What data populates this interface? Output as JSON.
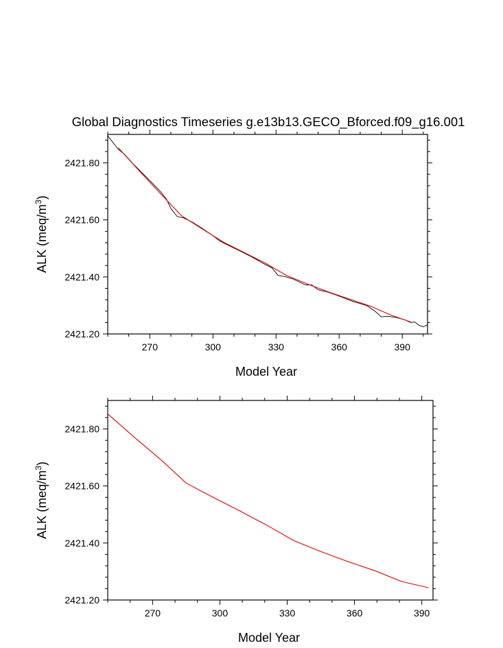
{
  "figure": {
    "title": "Global Diagnostics Timeseries g.e13b13.GECO_Bforced.f09_g16.001"
  },
  "chart_data": [
    {
      "type": "line",
      "xlabel": "Model Year",
      "ylabel_main": "ALK (meq/m",
      "ylabel_sup": "3",
      "ylabel_tail": ")",
      "xlim": [
        250,
        402
      ],
      "ylim": [
        2421.2,
        2421.9
      ],
      "xticks": [
        270,
        300,
        330,
        360,
        390
      ],
      "yticks": [
        2421.2,
        2421.4,
        2421.6,
        2421.8
      ],
      "xtick_labels": [
        "270",
        "300",
        "330",
        "360",
        "390"
      ],
      "ytick_labels": [
        "2421.20",
        "2421.40",
        "2421.60",
        "2421.80"
      ],
      "grid": false,
      "series": [
        {
          "color": "#000000",
          "x": [
            250,
            255,
            258,
            262,
            265,
            270,
            275,
            278,
            280,
            283,
            286,
            290,
            295,
            300,
            303,
            307,
            312,
            318,
            324,
            328,
            331,
            334,
            338,
            344,
            347,
            350,
            354,
            358,
            362,
            367,
            373,
            377,
            380,
            383,
            387,
            391,
            394,
            396,
            398,
            400,
            402
          ],
          "y": [
            2421.895,
            2421.848,
            2421.83,
            2421.797,
            2421.775,
            2421.738,
            2421.7,
            2421.672,
            2421.64,
            2421.612,
            2421.607,
            2421.593,
            2421.57,
            2421.545,
            2421.527,
            2421.512,
            2421.494,
            2421.472,
            2421.447,
            2421.432,
            2421.405,
            2421.402,
            2421.393,
            2421.372,
            2421.372,
            2421.355,
            2421.348,
            2421.338,
            2421.327,
            2421.313,
            2421.3,
            2421.28,
            2421.26,
            2421.262,
            2421.258,
            2421.25,
            2421.24,
            2421.242,
            2421.23,
            2421.225,
            2421.232
          ]
        },
        {
          "color": "#dd0000",
          "x": [
            255,
            265,
            275,
            285,
            295,
            305,
            315,
            325,
            335,
            345,
            355,
            365,
            375,
            385,
            394
          ],
          "y": [
            2421.853,
            2421.772,
            2421.693,
            2421.615,
            2421.568,
            2421.522,
            2421.485,
            2421.448,
            2421.405,
            2421.375,
            2421.347,
            2421.322,
            2421.297,
            2421.265,
            2421.242
          ]
        }
      ]
    },
    {
      "type": "line",
      "xlabel": "Model Year",
      "ylabel_main": "ALK (meq/m",
      "ylabel_sup": "3",
      "ylabel_tail": ")",
      "xlim": [
        250,
        395
      ],
      "ylim": [
        2421.2,
        2421.9
      ],
      "xticks": [
        270,
        300,
        330,
        360,
        390
      ],
      "yticks": [
        2421.2,
        2421.4,
        2421.6,
        2421.8
      ],
      "xtick_labels": [
        "270",
        "300",
        "330",
        "360",
        "390"
      ],
      "ytick_labels": [
        "2421.20",
        "2421.40",
        "2421.60",
        "2421.80"
      ],
      "grid": false,
      "series": [
        {
          "color": "#dd0000",
          "x": [
            250,
            262,
            274,
            285,
            297,
            309,
            321,
            333,
            345,
            357,
            369,
            381,
            393
          ],
          "y": [
            2421.853,
            2421.77,
            2421.69,
            2421.61,
            2421.56,
            2421.512,
            2421.462,
            2421.408,
            2421.37,
            2421.335,
            2421.303,
            2421.265,
            2421.243
          ]
        }
      ]
    }
  ]
}
